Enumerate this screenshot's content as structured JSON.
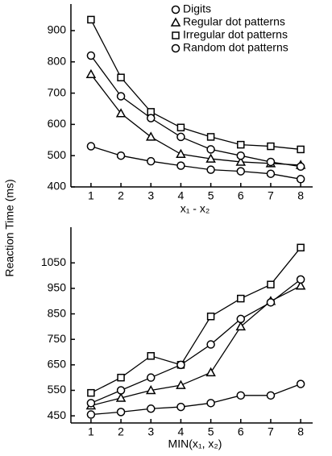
{
  "ylabel": "Reaction Time (ms)",
  "chart_data": [
    {
      "type": "line",
      "xlabel": "x₁ - x₂",
      "x": [
        1,
        2,
        3,
        4,
        5,
        6,
        7,
        8
      ],
      "xlim": [
        0.33,
        8.4
      ],
      "xticks": [
        1,
        2,
        3,
        4,
        5,
        6,
        7,
        8
      ],
      "ylim": [
        400,
        985
      ],
      "yticks": [
        400,
        500,
        600,
        700,
        800,
        900
      ],
      "legend": "upper right",
      "series": [
        {
          "name": "Digits",
          "marker": "circle",
          "color": "#000000",
          "values": [
            530,
            500,
            482,
            468,
            455,
            450,
            442,
            425
          ]
        },
        {
          "name": "Regular dot patterns",
          "marker": "triangle",
          "color": "#000000",
          "values": [
            760,
            635,
            560,
            505,
            490,
            480,
            475,
            470
          ]
        },
        {
          "name": "Irregular dot patterns",
          "marker": "square",
          "color": "#000000",
          "values": [
            935,
            750,
            640,
            590,
            560,
            535,
            530,
            520
          ]
        },
        {
          "name": "Random dot patterns",
          "marker": "circle",
          "color": "#000000",
          "values": [
            820,
            690,
            620,
            560,
            520,
            500,
            480,
            465
          ]
        }
      ]
    },
    {
      "type": "line",
      "xlabel": "MIN(x₁, x₂)",
      "x": [
        1,
        2,
        3,
        4,
        5,
        6,
        7,
        8
      ],
      "xlim": [
        0.33,
        8.4
      ],
      "xticks": [
        1,
        2,
        3,
        4,
        5,
        6,
        7,
        8
      ],
      "ylim": [
        422,
        1190
      ],
      "yticks": [
        450,
        550,
        650,
        750,
        850,
        950,
        1050
      ],
      "series": [
        {
          "marker": "circle",
          "color": "#000000",
          "values": [
            455,
            465,
            478,
            485,
            500,
            530,
            530,
            575
          ]
        },
        {
          "marker": "triangle",
          "color": "#000000",
          "values": [
            490,
            520,
            550,
            570,
            620,
            800,
            900,
            960
          ]
        },
        {
          "marker": "square",
          "color": "#000000",
          "values": [
            540,
            600,
            685,
            650,
            840,
            910,
            965,
            1110
          ]
        },
        {
          "marker": "circle",
          "color": "#000000",
          "values": [
            500,
            550,
            600,
            650,
            730,
            830,
            895,
            985
          ]
        }
      ]
    }
  ]
}
